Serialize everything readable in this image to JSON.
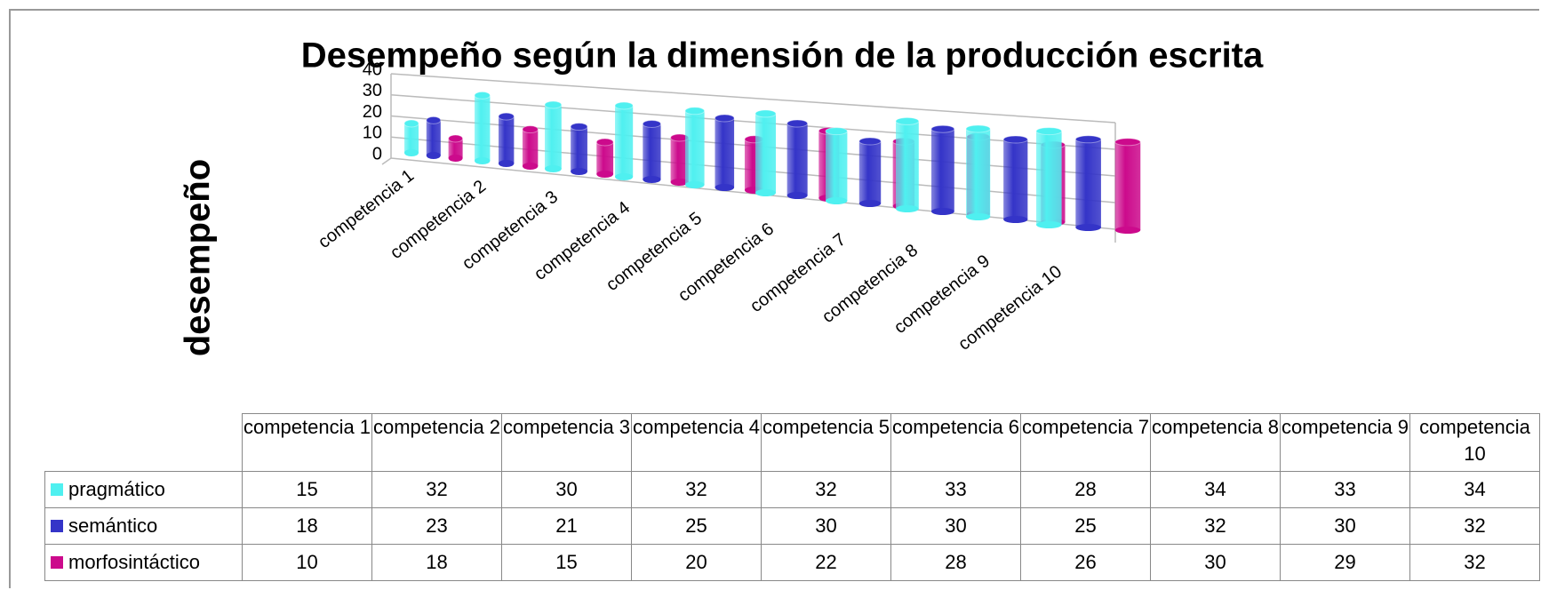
{
  "chart_data": {
    "type": "bar3d",
    "title": "Desempeño según la dimensión  de la producción escrita",
    "y_label": "desempeño",
    "categories": [
      "competencia 1",
      "competencia 2",
      "competencia 3",
      "competencia 4",
      "competencia 5",
      "competencia 6",
      "competencia 7",
      "competencia 8",
      "competencia 9",
      "competencia 10"
    ],
    "series": [
      {
        "name": "pragmático",
        "color": "#4ff0f0",
        "values": [
          15,
          32,
          30,
          32,
          32,
          33,
          28,
          34,
          33,
          34
        ]
      },
      {
        "name": "semántico",
        "color": "#3434c8",
        "values": [
          18,
          23,
          21,
          25,
          30,
          30,
          25,
          32,
          30,
          32
        ]
      },
      {
        "name": "morfosintáctico",
        "color": "#cc0a8c",
        "values": [
          10,
          18,
          15,
          20,
          22,
          28,
          26,
          30,
          29,
          32
        ]
      }
    ],
    "ylim": [
      0,
      40
    ],
    "yticks": [
      0,
      10,
      20,
      30,
      40
    ],
    "grid": true,
    "data_table": true
  }
}
